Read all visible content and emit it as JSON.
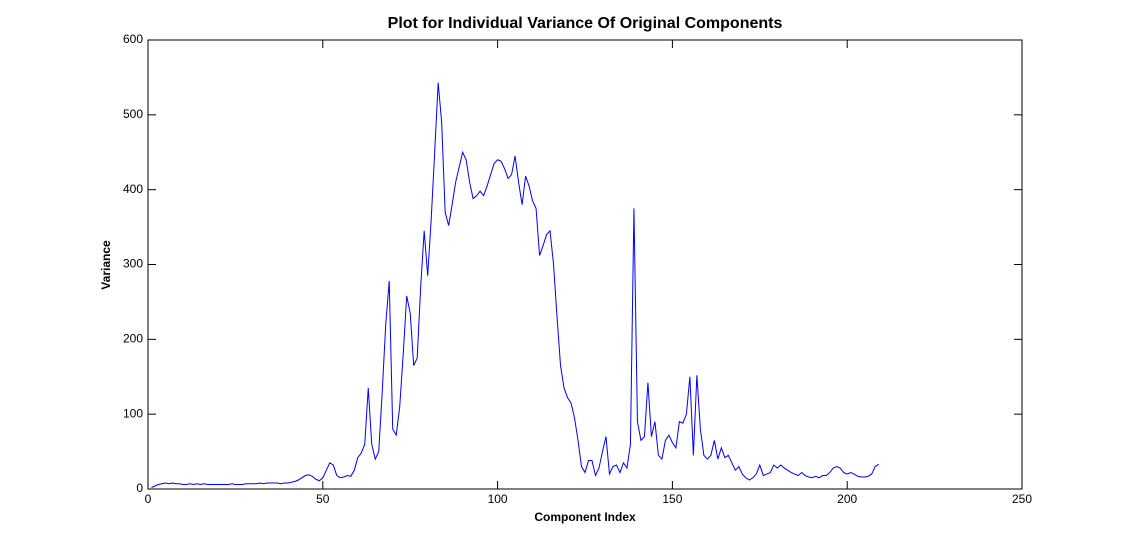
{
  "chart_data": {
    "type": "line",
    "title": "Plot for Individual Variance Of Original Components",
    "x_label": "Component Index",
    "y_label": "Variance",
    "xlim": [
      0,
      250
    ],
    "xticks": [
      0,
      50,
      100,
      150,
      200,
      250
    ],
    "ylim": [
      0,
      600
    ],
    "yticks": [
      0,
      100,
      200,
      300,
      400,
      500,
      600
    ],
    "x": [
      1,
      2,
      3,
      4,
      5,
      6,
      7,
      8,
      9,
      10,
      11,
      12,
      13,
      14,
      15,
      16,
      17,
      18,
      19,
      20,
      21,
      22,
      23,
      24,
      25,
      26,
      27,
      28,
      29,
      30,
      31,
      32,
      33,
      34,
      35,
      36,
      37,
      38,
      39,
      40,
      41,
      42,
      43,
      44,
      45,
      46,
      47,
      48,
      49,
      50,
      51,
      52,
      53,
      54,
      55,
      56,
      57,
      58,
      59,
      60,
      61,
      62,
      63,
      64,
      65,
      66,
      67,
      68,
      69,
      70,
      71,
      72,
      73,
      74,
      75,
      76,
      77,
      78,
      79,
      80,
      81,
      82,
      83,
      84,
      85,
      86,
      87,
      88,
      89,
      90,
      91,
      92,
      93,
      94,
      95,
      96,
      97,
      98,
      99,
      100,
      101,
      102,
      103,
      104,
      105,
      106,
      107,
      108,
      109,
      110,
      111,
      112,
      113,
      114,
      115,
      116,
      117,
      118,
      119,
      120,
      121,
      122,
      123,
      124,
      125,
      126,
      127,
      128,
      129,
      130,
      131,
      132,
      133,
      134,
      135,
      136,
      137,
      138,
      139,
      140,
      141,
      142,
      143,
      144,
      145,
      146,
      147,
      148,
      149,
      150,
      151,
      152,
      153,
      154,
      155,
      156,
      157,
      158,
      159,
      160,
      161,
      162,
      163,
      164,
      165,
      166,
      167,
      168,
      169,
      170,
      171,
      172,
      173,
      174,
      175,
      176,
      177,
      178,
      179,
      180,
      181,
      182,
      183,
      184,
      185,
      186,
      187,
      188,
      189,
      190,
      191,
      192,
      193,
      194,
      195,
      196,
      197,
      198,
      199,
      200,
      201,
      202,
      203,
      204,
      205,
      206,
      207,
      208,
      209
    ],
    "series": [
      {
        "name": "Variance",
        "color": "#0000ff",
        "values": [
          2,
          4,
          6,
          7,
          8,
          7,
          8,
          7,
          7,
          6,
          6,
          7,
          6,
          7,
          6,
          7,
          6,
          6,
          6,
          6,
          6,
          6,
          6,
          7,
          6,
          6,
          6,
          7,
          7,
          7,
          7,
          8,
          7,
          8,
          8,
          8,
          8,
          7,
          8,
          8,
          9,
          10,
          12,
          15,
          18,
          19,
          17,
          13,
          11,
          15,
          25,
          35,
          32,
          18,
          15,
          16,
          18,
          17,
          25,
          42,
          48,
          60,
          135,
          60,
          40,
          50,
          130,
          220,
          278,
          80,
          72,
          110,
          180,
          258,
          235,
          165,
          175,
          270,
          345,
          285,
          360,
          450,
          543,
          490,
          370,
          352,
          380,
          410,
          430,
          450,
          440,
          410,
          388,
          392,
          398,
          392,
          405,
          420,
          435,
          440,
          438,
          428,
          415,
          420,
          445,
          410,
          380,
          418,
          405,
          385,
          375,
          312,
          325,
          340,
          345,
          300,
          230,
          165,
          135,
          122,
          115,
          95,
          65,
          30,
          22,
          38,
          38,
          18,
          28,
          50,
          70,
          20,
          30,
          32,
          22,
          35,
          28,
          60,
          375,
          90,
          65,
          70,
          142,
          70,
          90,
          45,
          40,
          65,
          72,
          62,
          55,
          90,
          88,
          100,
          150,
          45,
          152,
          80,
          45,
          40,
          45,
          65,
          40,
          55,
          42,
          45,
          35,
          25,
          30,
          20,
          15,
          12,
          15,
          20,
          32,
          18,
          20,
          22,
          32,
          28,
          32,
          28,
          25,
          22,
          20,
          18,
          22,
          18,
          16,
          15,
          17,
          15,
          18,
          18,
          22,
          28,
          30,
          28,
          22,
          20,
          22,
          20,
          17,
          16,
          16,
          17,
          20,
          30,
          33
        ]
      }
    ]
  }
}
